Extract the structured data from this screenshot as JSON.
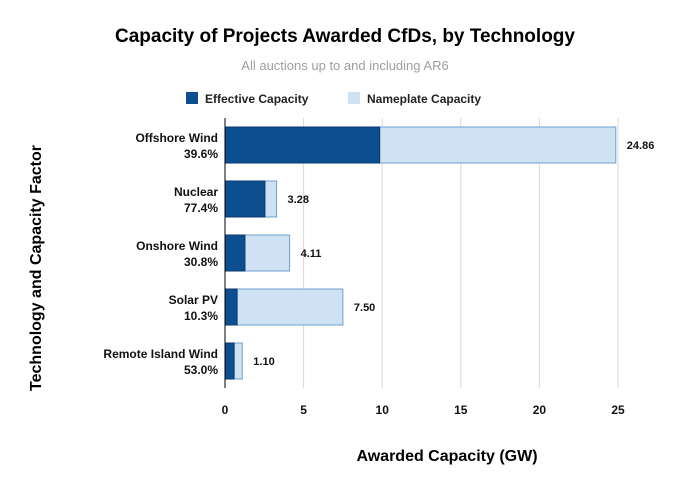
{
  "chart_data": {
    "type": "bar",
    "orientation": "horizontal",
    "title": "Capacity of Projects Awarded CfDs, by Technology",
    "subtitle": "All auctions up to and including AR6",
    "xlabel": "Awarded Capacity (GW)",
    "ylabel": "Technology and Capacity Factor",
    "xlim": [
      0,
      25
    ],
    "xticks": [
      0,
      5,
      10,
      15,
      20,
      25
    ],
    "grid": true,
    "legend_position": "top",
    "categories": [
      {
        "name": "Offshore Wind",
        "factor": "39.6%"
      },
      {
        "name": "Nuclear",
        "factor": "77.4%"
      },
      {
        "name": "Onshore Wind",
        "factor": "30.8%"
      },
      {
        "name": "Solar PV",
        "factor": "10.3%"
      },
      {
        "name": "Remote Island Wind",
        "factor": "53.0%"
      }
    ],
    "series": [
      {
        "name": "Effective Capacity",
        "color": "#0b4f91",
        "values": [
          9.84,
          2.54,
          1.27,
          0.77,
          0.58
        ]
      },
      {
        "name": "Nameplate Capacity",
        "color": "#cfe2f3",
        "values": [
          24.86,
          3.28,
          4.11,
          7.5,
          1.1
        ]
      }
    ],
    "data_labels": [
      "24.86",
      "3.28",
      "4.11",
      "7.50",
      "1.10"
    ]
  }
}
